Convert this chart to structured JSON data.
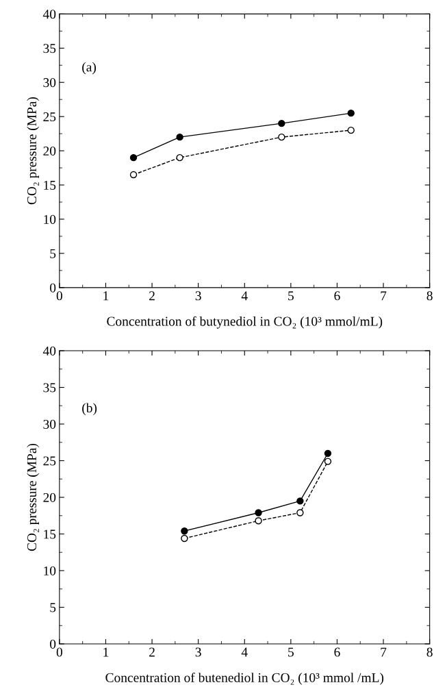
{
  "chart_data": [
    {
      "type": "line",
      "xlabel": "Concentration of butynediol in CO₂ (10³ mmol/mL)",
      "ylabel": "CO₂ pressure (MPa)",
      "annotations": [
        "(a)"
      ],
      "xlim": [
        0,
        8
      ],
      "xticks": [
        0,
        1,
        2,
        3,
        4,
        5,
        6,
        7,
        8
      ],
      "ylim": [
        0,
        40
      ],
      "yticks": [
        0,
        5,
        10,
        15,
        20,
        25,
        30,
        35,
        40
      ],
      "grid": false,
      "legend": false,
      "marker": "circle",
      "x": [
        1.6,
        2.6,
        4.8,
        6.3
      ],
      "series": [
        {
          "color": "#000000",
          "line_style": "solid",
          "colors": [
            "#000000",
            "#000000",
            "#000000",
            "#000000"
          ],
          "values": [
            19,
            22,
            24,
            25.5
          ]
        },
        {
          "color": "#000000",
          "line_style": "dashed",
          "colors": [
            "#ffffff",
            "#ffffff",
            "#ffffff",
            "#ffffff"
          ],
          "values": [
            16.5,
            19,
            22,
            23
          ]
        }
      ]
    },
    {
      "type": "line",
      "xlabel": "Concentration of butenediol in CO₂ (10³ mmol /mL)",
      "ylabel": "CO₂ pressure (MPa)",
      "annotations": [
        "(b)"
      ],
      "xlim": [
        0,
        8
      ],
      "xticks": [
        0,
        1,
        2,
        3,
        4,
        5,
        6,
        7,
        8
      ],
      "ylim": [
        0,
        40
      ],
      "yticks": [
        0,
        5,
        10,
        15,
        20,
        25,
        30,
        35,
        40
      ],
      "grid": false,
      "legend": false,
      "marker": "circle",
      "x": [
        2.7,
        4.3,
        5.2,
        5.8
      ],
      "series": [
        {
          "color": "#000000",
          "line_style": "solid",
          "colors": [
            "#000000",
            "#000000",
            "#000000",
            "#000000"
          ],
          "values": [
            15.4,
            17.9,
            19.5,
            26
          ]
        },
        {
          "color": "#000000",
          "line_style": "dashed",
          "colors": [
            "#ffffff",
            "#ffffff",
            "#ffffff",
            "#ffffff"
          ],
          "values": [
            14.4,
            16.8,
            17.9,
            24.9
          ]
        }
      ]
    }
  ]
}
